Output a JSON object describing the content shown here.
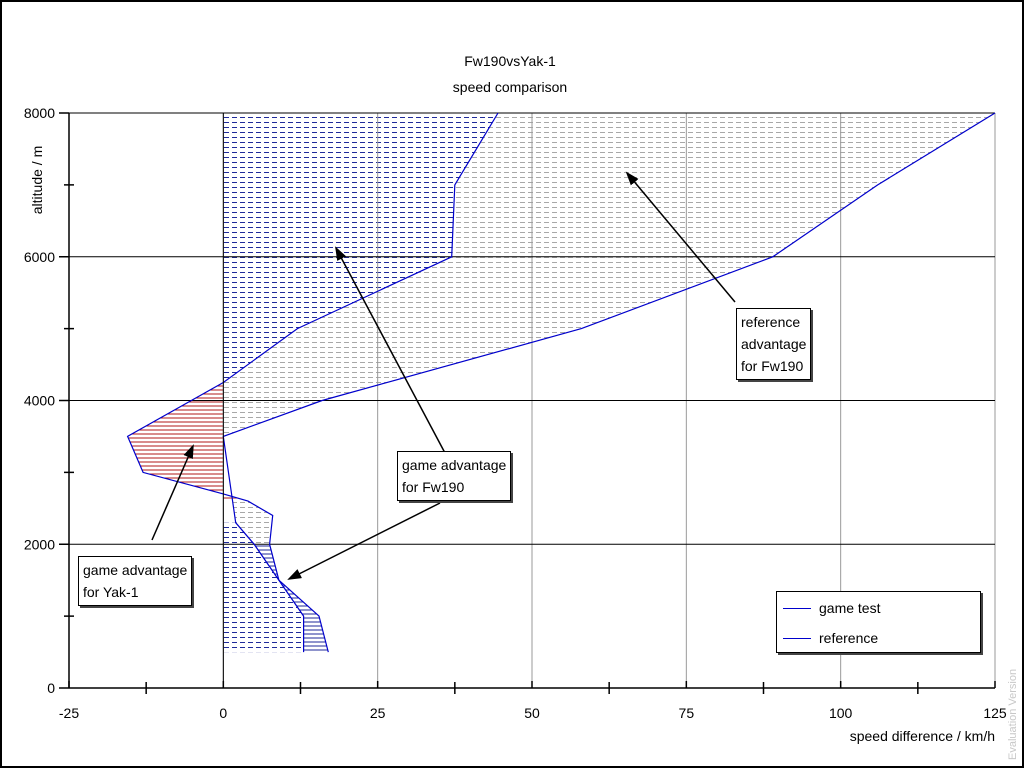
{
  "chart_data": {
    "type": "area",
    "title": "Fw190vsYak-1",
    "subtitle": "speed comparison",
    "xlabel": "speed difference / km/h",
    "ylabel": "altitude / m",
    "xlim": [
      -25,
      125
    ],
    "ylim": [
      0,
      8000
    ],
    "x_ticks": [
      "-25",
      "0",
      "25",
      "50",
      "75",
      "100",
      "125"
    ],
    "y_ticks": [
      "0",
      "2000",
      "4000",
      "6000",
      "8000"
    ],
    "grid": true,
    "legend_position": "bottom-right",
    "series": [
      {
        "name": "game test",
        "color": "#0000cc",
        "points": [
          [
            17,
            500
          ],
          [
            15.5,
            1000
          ],
          [
            9,
            1500
          ],
          [
            7.5,
            2000
          ],
          [
            8,
            2400
          ],
          [
            4,
            2600
          ],
          [
            0,
            2700
          ],
          [
            -13,
            3000
          ],
          [
            -15.5,
            3500
          ],
          [
            0,
            4250
          ],
          [
            12,
            5000
          ],
          [
            37,
            6000
          ],
          [
            37.5,
            7000
          ],
          [
            44.5,
            8000
          ]
        ]
      },
      {
        "name": "reference",
        "color": "#0000cc",
        "points": [
          [
            13,
            500
          ],
          [
            13,
            1000
          ],
          [
            5,
            2000
          ],
          [
            2,
            2300
          ],
          [
            0,
            3500
          ],
          [
            16,
            4000
          ],
          [
            58,
            5000
          ],
          [
            89,
            6000
          ],
          [
            106,
            7000
          ],
          [
            125,
            8000
          ]
        ]
      }
    ],
    "annotations": [
      {
        "id": "ref_adv",
        "lines": [
          "reference",
          "advantage",
          "for Fw190"
        ]
      },
      {
        "id": "game_adv_fw",
        "lines": [
          "game advantage",
          "for Fw190"
        ]
      },
      {
        "id": "game_adv_yak",
        "lines": [
          "game advantage",
          "for Yak-1"
        ]
      }
    ]
  },
  "watermark": "Evaluation Version"
}
